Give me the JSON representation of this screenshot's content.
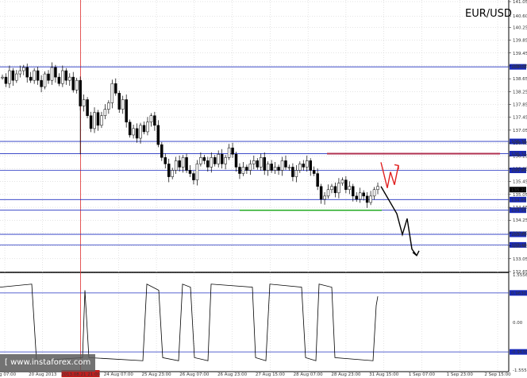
{
  "chart_data": [
    {
      "type": "candlestick",
      "title": "EUR/USD",
      "ylim": [
        132.65,
        141.05
      ],
      "price_ticks": [
        "141.05",
        "140.60",
        "140.25",
        "139.85",
        "139.45",
        "139.05",
        "138.65",
        "138.25",
        "137.85",
        "137.45",
        "137.05",
        "136.65",
        "136.25",
        "135.85",
        "135.45",
        "135.05",
        "134.65",
        "134.25",
        "133.85",
        "133.45",
        "133.05",
        "132.65"
      ],
      "x_labels": [
        "Aug 07:00",
        "20 Aug 2013",
        "2013.08.21 21:00",
        "24 Aug 07:00",
        "25 Aug 23:00",
        "26 Aug 07:00",
        "26 Aug 23:00",
        "27 Aug 15:00",
        "28 Aug 07:00",
        "28 Aug 23:00",
        "31 Aug 15:00",
        "1 Sep 07:00",
        "1 Sep 23:00",
        "2 Sep 15:00"
      ],
      "highlighted_x_label": "2013.08.21 21:00",
      "levels": [
        {
          "value": 139.02,
          "label": "139.02"
        },
        {
          "value": 136.7,
          "label": "136.70"
        },
        {
          "value": 136.32,
          "label": "136.32"
        },
        {
          "value": 135.8,
          "label": "135.80"
        },
        {
          "value": 135.2,
          "label": "135.20"
        },
        {
          "value": 134.89,
          "label": "134.89"
        },
        {
          "value": 134.56,
          "label": "134.56"
        },
        {
          "value": 133.81,
          "label": "133.81"
        },
        {
          "value": 133.48,
          "label": "133.48"
        }
      ],
      "resistance_line": {
        "value": 136.32,
        "color": "#b03050"
      },
      "support_line": {
        "value": 134.56,
        "color": "#22aa22"
      },
      "last_price": "135.20",
      "price_path": [
        138.7,
        138.5,
        138.9,
        138.6,
        138.8,
        138.9,
        139.0,
        138.7,
        138.6,
        138.9,
        138.6,
        138.4,
        138.8,
        138.6,
        139.0,
        138.7,
        138.5,
        138.9,
        138.6,
        138.7,
        138.3,
        138.6,
        137.8,
        138.0,
        137.5,
        137.1,
        137.6,
        137.2,
        137.5,
        137.7,
        137.9,
        138.5,
        138.2,
        137.7,
        138.0,
        137.3,
        136.9,
        137.1,
        136.8,
        137.2,
        137.0,
        137.3,
        137.5,
        137.2,
        136.6,
        136.2,
        136.0,
        135.6,
        135.8,
        136.1,
        135.9,
        136.2,
        135.8,
        135.7,
        135.5,
        136.0,
        136.2,
        136.1,
        135.9,
        136.2,
        136.0,
        136.3,
        136.0,
        136.2,
        136.5,
        136.3,
        135.9,
        135.7,
        135.9,
        135.8,
        136.0,
        136.1,
        135.9,
        136.2,
        135.8,
        136.0,
        135.8,
        135.9,
        135.8,
        136.1,
        135.9,
        135.9,
        135.6,
        135.8,
        136.0,
        135.9,
        136.1,
        135.8,
        135.7,
        135.3,
        134.9,
        135.0,
        135.2,
        135.3,
        135.1,
        135.4,
        135.5,
        135.2,
        135.3,
        135.0,
        134.9,
        135.1,
        135.0,
        134.8,
        135.0,
        135.2,
        135.3
      ],
      "forecast_red": [
        136.05,
        135.25,
        135.75,
        135.35,
        135.95
      ],
      "forecast_black": [
        135.3,
        134.45,
        133.8,
        134.3,
        133.35,
        133.15
      ],
      "oscillator": {
        "levels": [
          {
            "value": 0.963,
            "label": "0.9630"
          },
          {
            "value": -0.963,
            "label": "-0.9630"
          }
        ],
        "ticks": [
          "1.5556",
          "0.00",
          "-1.5556"
        ]
      }
    }
  ],
  "watermark": "[ www.instaforex.com"
}
